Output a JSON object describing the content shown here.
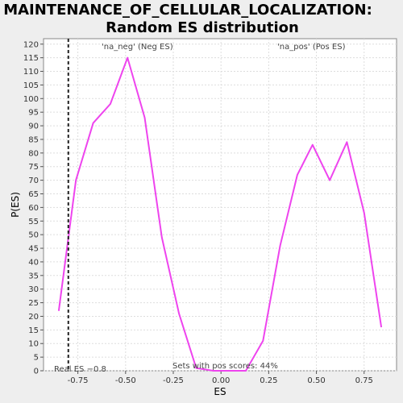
{
  "chart_data": {
    "type": "line",
    "title": "MAINTENANCE_OF_CELLULAR_LOCALIZATION:",
    "subtitle": "Random ES distribution",
    "xlabel": "ES",
    "ylabel": "P(ES)",
    "xlim": [
      -0.93,
      0.92
    ],
    "ylim": [
      0,
      122
    ],
    "xticks": [
      -0.75,
      -0.5,
      -0.25,
      0.0,
      0.25,
      0.5,
      0.75
    ],
    "xtick_labels": [
      "-0.75",
      "-0.50",
      "-0.25",
      "0.00",
      "0.25",
      "0.50",
      "0.75"
    ],
    "yticks": [
      0,
      5,
      10,
      15,
      20,
      25,
      30,
      35,
      40,
      45,
      50,
      55,
      60,
      65,
      70,
      75,
      80,
      85,
      90,
      95,
      100,
      105,
      110,
      115,
      120
    ],
    "grid": true,
    "series": [
      {
        "color": "#ee44ee",
        "x": [
          -0.85,
          -0.76,
          -0.67,
          -0.58,
          -0.49,
          -0.4,
          -0.31,
          -0.22,
          -0.13,
          -0.04,
          0.05,
          0.13,
          0.22,
          0.31,
          0.4,
          0.48,
          0.57,
          0.66,
          0.75,
          0.84
        ],
        "y": [
          22,
          70,
          91,
          98,
          115,
          93,
          49,
          21,
          1,
          0,
          0,
          0,
          11,
          46,
          72,
          83,
          70,
          84,
          58,
          16
        ]
      }
    ],
    "real_es": -0.8,
    "annotations": {
      "neg_label": "'na_neg' (Neg ES)",
      "pos_label": "'na_pos' (Pos ES)",
      "real_es_label": "Real ES −0.8",
      "pos_scores_label": "Sets with pos scores: 44%"
    },
    "colors": {
      "neg": "#3333cc",
      "pos": "#dd3333",
      "line": "#ee44ee",
      "grid": "#dddddd",
      "background": "#eeeeee",
      "plot_background": "#ffffff"
    }
  }
}
